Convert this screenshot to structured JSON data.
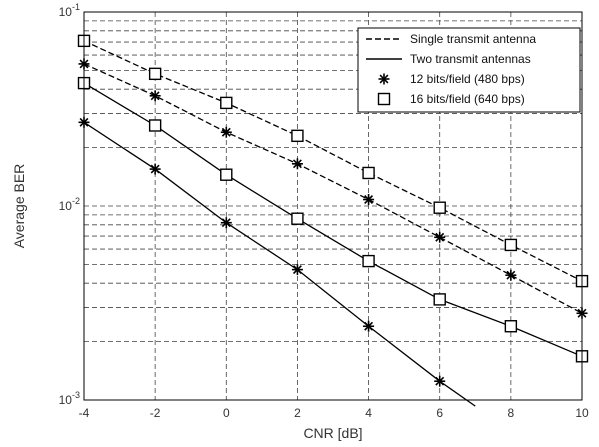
{
  "chart_data": {
    "type": "line",
    "title": "",
    "xlabel": "CNR [dB]",
    "ylabel": "Average BER",
    "xlim": [
      -4,
      10
    ],
    "ylim": [
      0.001,
      0.1
    ],
    "yscale": "log",
    "grid": true,
    "legend_position": "top-right",
    "x_ticks": [
      -4,
      -2,
      0,
      2,
      4,
      6,
      8,
      10
    ],
    "x_tick_labels": [
      "-4",
      "-2",
      "0",
      "2",
      "4",
      "6",
      "8",
      "10"
    ],
    "y_ticks": [
      0.001,
      0.01,
      0.1
    ],
    "y_tick_labels": [
      {
        "base": "10",
        "exp": "-3"
      },
      {
        "base": "10",
        "exp": "-2"
      },
      {
        "base": "10",
        "exp": "-1"
      }
    ],
    "legend": [
      {
        "label": "Single transmit antenna",
        "kind": "line",
        "dash": "dashed"
      },
      {
        "label": "Two transmit antennas",
        "kind": "line",
        "dash": "solid"
      },
      {
        "label": "12 bits/field (480 bps)",
        "kind": "marker",
        "marker": "star"
      },
      {
        "label": "16 bits/field (640 bps)",
        "kind": "marker",
        "marker": "square"
      }
    ],
    "series": [
      {
        "antennas": "single",
        "rate": "12 bits/field (480 bps)",
        "dash": "dashed",
        "marker": "star",
        "x": [
          -4,
          -2,
          0,
          2,
          4,
          6,
          8,
          10
        ],
        "y": [
          0.054,
          0.037,
          0.024,
          0.0165,
          0.0108,
          0.0069,
          0.0044,
          0.0028
        ]
      },
      {
        "antennas": "single",
        "rate": "16 bits/field (640 bps)",
        "dash": "dashed",
        "marker": "square",
        "x": [
          -4,
          -2,
          0,
          2,
          4,
          6,
          8,
          10
        ],
        "y": [
          0.071,
          0.048,
          0.034,
          0.023,
          0.0148,
          0.0098,
          0.0063,
          0.0041
        ]
      },
      {
        "antennas": "two",
        "rate": "12 bits/field (480 bps)",
        "dash": "solid",
        "marker": "star",
        "x": [
          -4,
          -2,
          0,
          2,
          4,
          6,
          7
        ],
        "y": [
          0.027,
          0.0155,
          0.0082,
          0.0047,
          0.0024,
          0.00125,
          0.00093
        ],
        "marker_x": [
          -4,
          -2,
          0,
          2,
          4,
          6
        ]
      },
      {
        "antennas": "two",
        "rate": "16 bits/field (640 bps)",
        "dash": "solid",
        "marker": "square",
        "x": [
          -4,
          -2,
          0,
          2,
          4,
          6,
          8,
          10
        ],
        "y": [
          0.043,
          0.026,
          0.0145,
          0.0086,
          0.0052,
          0.0033,
          0.0024,
          0.00168
        ]
      }
    ]
  },
  "colors": {
    "line": "#000000",
    "grid": "#444444",
    "text": "#333333",
    "background": "#ffffff"
  }
}
